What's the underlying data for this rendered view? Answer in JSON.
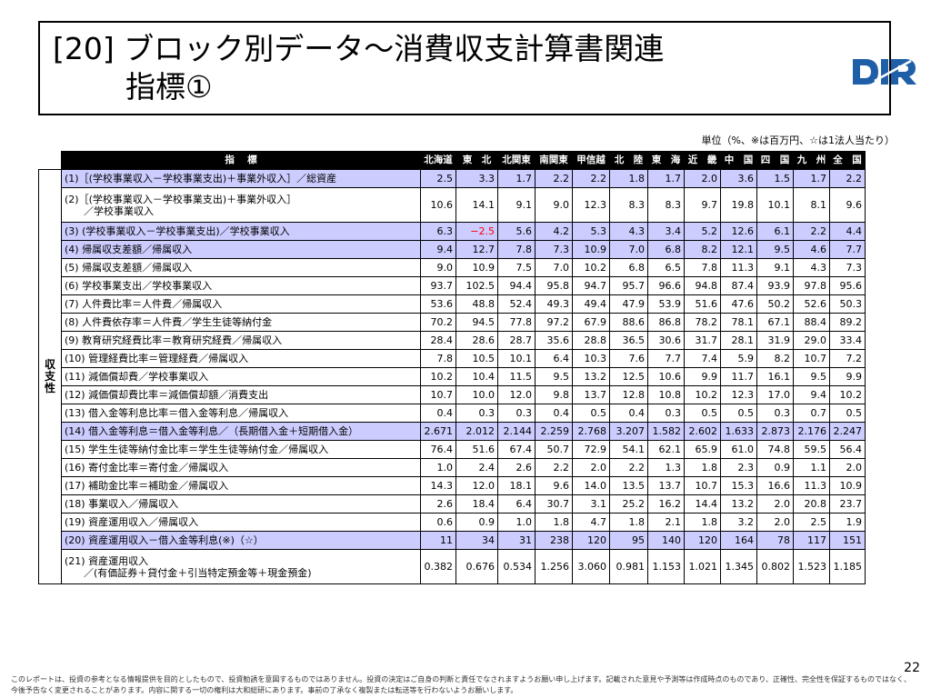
{
  "title": {
    "line1": "[20] ブロック別データ～消費収支計算書関連",
    "line2": "指標①"
  },
  "logo": {
    "text": "DIR",
    "color": "#1f5fa8"
  },
  "unit_note": "単位（%、※は百万円、☆は1法人当たり）",
  "table": {
    "header_label": "指　 標",
    "regions": [
      "北海道",
      "東　北",
      "北関東",
      "南関東",
      "甲信越",
      "北　陸",
      "東　海",
      "近　畿",
      "中　国",
      "四　国",
      "九　州",
      "全　国"
    ],
    "category": [
      "収",
      "支",
      "性"
    ],
    "rows": [
      {
        "label": "(1)［(学校事業収入－学校事業支出)＋事業外収入］／総資産",
        "values": [
          "2.5",
          "3.3",
          "1.7",
          "2.2",
          "2.2",
          "1.8",
          "1.7",
          "2.0",
          "3.6",
          "1.5",
          "1.7",
          "2.2"
        ],
        "highlight": true
      },
      {
        "label": "(2)［(学校事業収入－学校事業支出)＋事業外収入］",
        "label2": "　／学校事業収入",
        "values": [
          "10.6",
          "14.1",
          "9.1",
          "9.0",
          "12.3",
          "8.3",
          "8.3",
          "9.7",
          "19.8",
          "10.1",
          "8.1",
          "9.6"
        ],
        "highlight": false
      },
      {
        "label": "(3) (学校事業収入－学校事業支出)／学校事業収入",
        "values": [
          "6.3",
          "−2.5",
          "5.6",
          "4.2",
          "5.3",
          "4.3",
          "3.4",
          "5.2",
          "12.6",
          "6.1",
          "2.2",
          "4.4"
        ],
        "highlight": true
      },
      {
        "label": "(4) 帰属収支差額／帰属収入",
        "values": [
          "9.4",
          "12.7",
          "7.8",
          "7.3",
          "10.9",
          "7.0",
          "6.8",
          "8.2",
          "12.1",
          "9.5",
          "4.6",
          "7.7"
        ],
        "highlight": true
      },
      {
        "label": "(5) 帰属収支差額／帰属収入",
        "values": [
          "9.0",
          "10.9",
          "7.5",
          "7.0",
          "10.2",
          "6.8",
          "6.5",
          "7.8",
          "11.3",
          "9.1",
          "4.3",
          "7.3"
        ],
        "highlight": false
      },
      {
        "label": "(6) 学校事業支出／学校事業収入",
        "values": [
          "93.7",
          "102.5",
          "94.4",
          "95.8",
          "94.7",
          "95.7",
          "96.6",
          "94.8",
          "87.4",
          "93.9",
          "97.8",
          "95.6"
        ],
        "highlight": false
      },
      {
        "label": "(7) 人件費比率＝人件費／帰属収入",
        "values": [
          "53.6",
          "48.8",
          "52.4",
          "49.3",
          "49.4",
          "47.9",
          "53.9",
          "51.6",
          "47.6",
          "50.2",
          "52.6",
          "50.3"
        ],
        "highlight": false
      },
      {
        "label": "(8) 人件費依存率＝人件費／学生生徒等納付金",
        "values": [
          "70.2",
          "94.5",
          "77.8",
          "97.2",
          "67.9",
          "88.6",
          "86.8",
          "78.2",
          "78.1",
          "67.1",
          "88.4",
          "89.2"
        ],
        "highlight": false
      },
      {
        "label": "(9) 教育研究経費比率＝教育研究経費／帰属収入",
        "values": [
          "28.4",
          "28.6",
          "28.7",
          "35.6",
          "28.8",
          "36.5",
          "30.6",
          "31.7",
          "28.1",
          "31.9",
          "29.0",
          "33.4"
        ],
        "highlight": false
      },
      {
        "label": "(10) 管理経費比率＝管理経費／帰属収入",
        "values": [
          "7.8",
          "10.5",
          "10.1",
          "6.4",
          "10.3",
          "7.6",
          "7.7",
          "7.4",
          "5.9",
          "8.2",
          "10.7",
          "7.2"
        ],
        "highlight": false
      },
      {
        "label": "(11) 減価償却費／学校事業収入",
        "values": [
          "10.2",
          "10.4",
          "11.5",
          "9.5",
          "13.2",
          "12.5",
          "10.6",
          "9.9",
          "11.7",
          "16.1",
          "9.5",
          "9.9"
        ],
        "highlight": false
      },
      {
        "label": "(12) 減価償却費比率＝減価償却額／消費支出",
        "values": [
          "10.7",
          "10.0",
          "12.0",
          "9.8",
          "13.7",
          "12.8",
          "10.8",
          "10.2",
          "12.3",
          "17.0",
          "9.4",
          "10.2"
        ],
        "highlight": false
      },
      {
        "label": "(13) 借入金等利息比率＝借入金等利息／帰属収入",
        "values": [
          "0.4",
          "0.3",
          "0.3",
          "0.4",
          "0.5",
          "0.4",
          "0.3",
          "0.5",
          "0.5",
          "0.3",
          "0.7",
          "0.5"
        ],
        "highlight": false
      },
      {
        "label": "(14) 借入金等利息＝借入金等利息／（長期借入金＋短期借入金）",
        "values": [
          "2.671",
          "2.012",
          "2.144",
          "2.259",
          "2.768",
          "3.207",
          "1.582",
          "2.602",
          "1.633",
          "2.873",
          "2.176",
          "2.247"
        ],
        "highlight": true
      },
      {
        "label": "(15) 学生生徒等納付金比率＝学生生徒等納付金／帰属収入",
        "values": [
          "76.4",
          "51.6",
          "67.4",
          "50.7",
          "72.9",
          "54.1",
          "62.1",
          "65.9",
          "61.0",
          "74.8",
          "59.5",
          "56.4"
        ],
        "highlight": false
      },
      {
        "label": "(16) 寄付金比率＝寄付金／帰属収入",
        "values": [
          "1.0",
          "2.4",
          "2.6",
          "2.2",
          "2.0",
          "2.2",
          "1.3",
          "1.8",
          "2.3",
          "0.9",
          "1.1",
          "2.0"
        ],
        "highlight": false
      },
      {
        "label": "(17) 補助金比率＝補助金／帰属収入",
        "values": [
          "14.3",
          "12.0",
          "18.1",
          "9.6",
          "14.0",
          "13.5",
          "13.7",
          "10.7",
          "15.3",
          "16.6",
          "11.3",
          "10.9"
        ],
        "highlight": false
      },
      {
        "label": "(18) 事業収入／帰属収入",
        "values": [
          "2.6",
          "18.4",
          "6.4",
          "30.7",
          "3.1",
          "25.2",
          "16.2",
          "14.4",
          "13.2",
          "2.0",
          "20.8",
          "23.7"
        ],
        "highlight": false
      },
      {
        "label": "(19) 資産運用収入／帰属収入",
        "values": [
          "0.6",
          "0.9",
          "1.0",
          "1.8",
          "4.7",
          "1.8",
          "2.1",
          "1.8",
          "3.2",
          "2.0",
          "2.5",
          "1.9"
        ],
        "highlight": false
      },
      {
        "label": "(20) 資産運用収入－借入金等利息(※)（☆）",
        "values": [
          "11",
          "34",
          "31",
          "238",
          "120",
          "95",
          "140",
          "120",
          "164",
          "78",
          "117",
          "151"
        ],
        "highlight": true
      },
      {
        "label": "(21) 資産運用収入",
        "label2": "　／(有価証券＋貸付金＋引当特定預金等＋現金預金)",
        "values": [
          "0.382",
          "0.676",
          "0.534",
          "1.256",
          "3.060",
          "0.981",
          "1.153",
          "1.021",
          "1.345",
          "0.802",
          "1.523",
          "1.185"
        ],
        "highlight": false
      }
    ]
  },
  "page_number": "22",
  "disclaimer": "このレポートは、投資の参考となる情報提供を目的としたもので、投資勧誘を意図するものではありません。投資の決定はご自身の判断と責任でなされますようお願い申し上げます。記載された意見や予測等は作成時点のものであり、正確性、完全性を保証するものではなく、今後予告なく変更されることがあります。内容に関する一切の権利は大和総研にあります。事前の了承なく複製または転送等を行わないようお願いします。"
}
